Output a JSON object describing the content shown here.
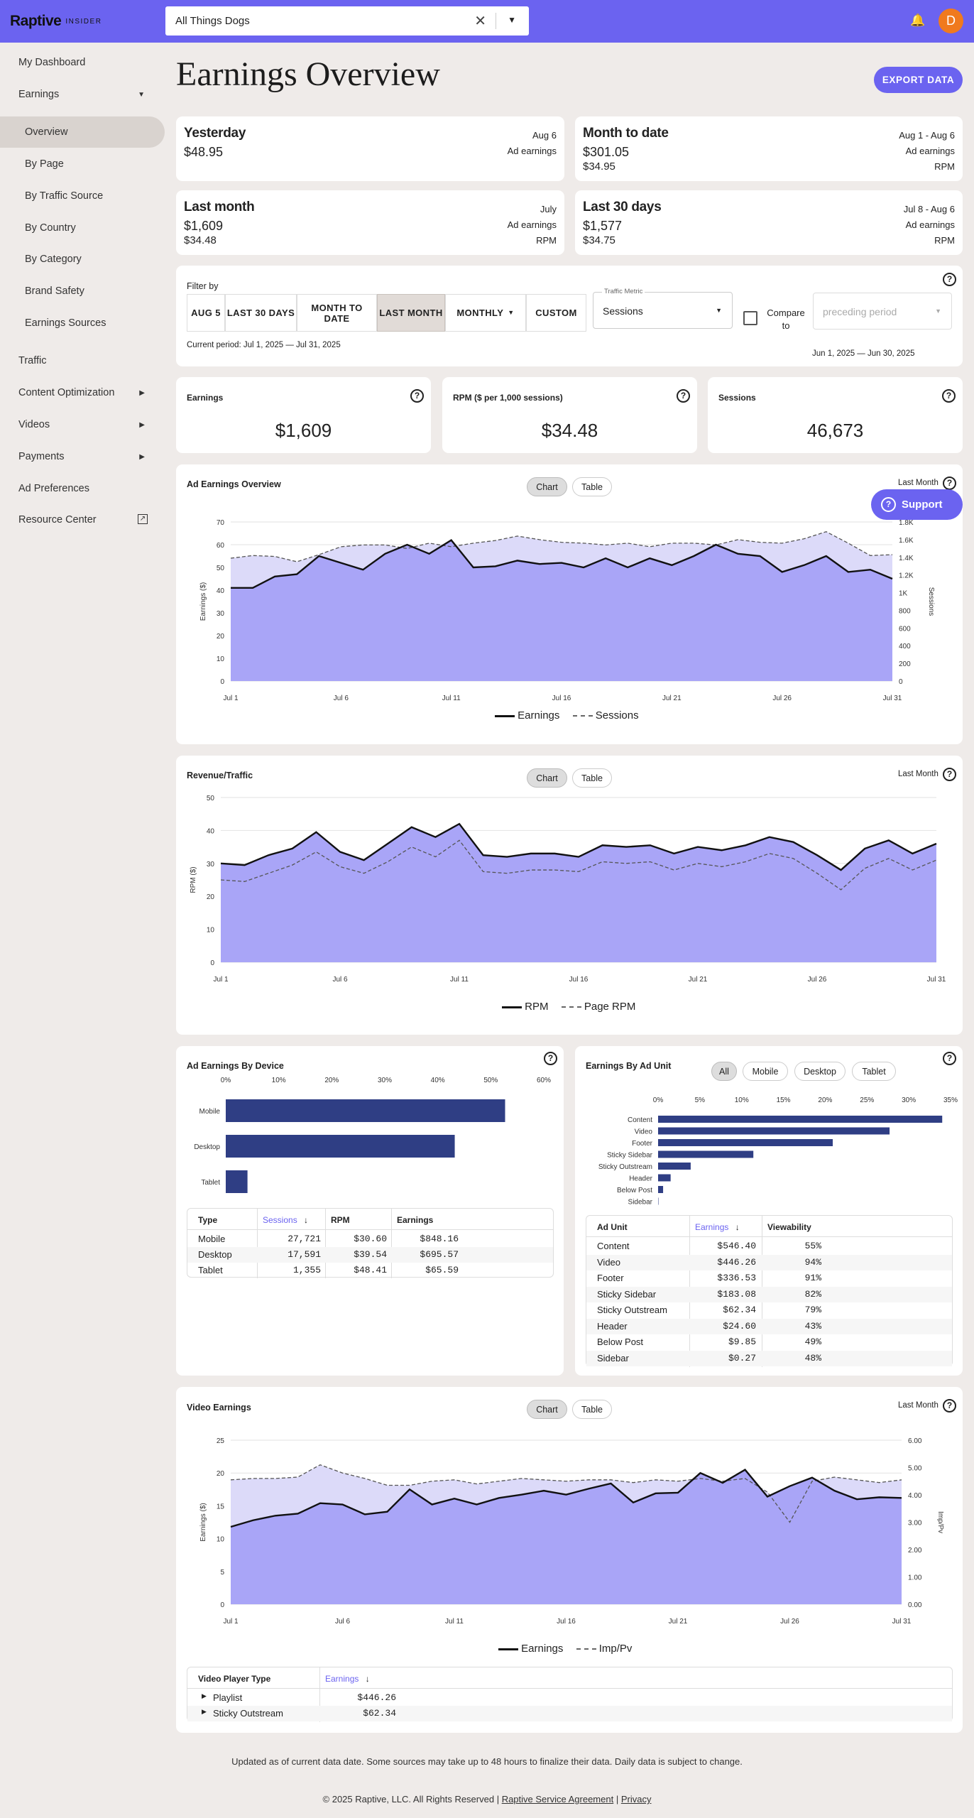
{
  "brand": {
    "logo": "Raptive",
    "sub": "INSIDER"
  },
  "site_select": {
    "value": "All Things Dogs"
  },
  "avatar_letter": "D",
  "sidebar": {
    "items": [
      {
        "label": "My Dashboard"
      },
      {
        "label": "Earnings"
      },
      {
        "label": "Overview"
      },
      {
        "label": "By Page"
      },
      {
        "label": "By Traffic Source"
      },
      {
        "label": "By Country"
      },
      {
        "label": "By Category"
      },
      {
        "label": "Brand Safety"
      },
      {
        "label": "Earnings Sources"
      },
      {
        "label": "Traffic"
      },
      {
        "label": "Content Optimization"
      },
      {
        "label": "Videos"
      },
      {
        "label": "Payments"
      },
      {
        "label": "Ad Preferences"
      },
      {
        "label": "Resource Center"
      }
    ]
  },
  "page_title": "Earnings Overview",
  "export_label": "EXPORT DATA",
  "summary": [
    {
      "title": "Yesterday",
      "value": "$48.95",
      "date": "Aug 6",
      "metric": "Ad earnings"
    },
    {
      "title": "Month to date",
      "value": "$301.05",
      "value2": "$34.95",
      "date": "Aug 1 - Aug 6",
      "metric": "Ad earnings",
      "metric2": "RPM"
    },
    {
      "title": "Last month",
      "value": "$1,609",
      "value2": "$34.48",
      "date": "July",
      "metric": "Ad earnings",
      "metric2": "RPM"
    },
    {
      "title": "Last 30 days",
      "value": "$1,577",
      "value2": "$34.75",
      "date": "Jul 8 - Aug 6",
      "metric": "Ad earnings",
      "metric2": "RPM"
    }
  ],
  "filter": {
    "label": "Filter by",
    "buttons": [
      "AUG 5",
      "LAST 30 DAYS",
      "MONTH TO DATE",
      "LAST MONTH",
      "MONTHLY",
      "CUSTOM"
    ],
    "traffic_metric_label": "Traffic Metric",
    "traffic_metric_value": "Sessions",
    "compare_label": "Compare to",
    "compare_placeholder": "preceding period",
    "current_period": "Current period: Jul 1, 2025 — Jul 31, 2025",
    "compare_period": "Jun 1, 2025 — Jun 30, 2025"
  },
  "kpis": [
    {
      "label": "Earnings",
      "value": "$1,609"
    },
    {
      "label": "RPM ($ per 1,000 sessions)",
      "value": "$34.48"
    },
    {
      "label": "Sessions",
      "value": "46,673"
    }
  ],
  "tabs": {
    "chart": "Chart",
    "table": "Table"
  },
  "range_label": "Last Month",
  "support_label": "Support",
  "ad_overview": {
    "title": "Ad Earnings Overview"
  },
  "revenue_traffic": {
    "title": "Revenue/Traffic"
  },
  "device": {
    "title": "Ad Earnings By Device",
    "headers": [
      "Type",
      "Sessions",
      "RPM",
      "Earnings"
    ],
    "rows": [
      [
        "Mobile",
        "27,721",
        "$30.60",
        "$848.16"
      ],
      [
        "Desktop",
        "17,591",
        "$39.54",
        "$695.57"
      ],
      [
        "Tablet",
        "1,355",
        "$48.41",
        "$65.59"
      ]
    ]
  },
  "adunit": {
    "title": "Earnings By Ad Unit",
    "filters": [
      "All",
      "Mobile",
      "Desktop",
      "Tablet"
    ],
    "headers": [
      "Ad Unit",
      "Earnings",
      "Viewability"
    ],
    "rows": [
      [
        "Content",
        "$546.40",
        "55%"
      ],
      [
        "Video",
        "$446.26",
        "94%"
      ],
      [
        "Footer",
        "$336.53",
        "91%"
      ],
      [
        "Sticky Sidebar",
        "$183.08",
        "82%"
      ],
      [
        "Sticky Outstream",
        "$62.34",
        "79%"
      ],
      [
        "Header",
        "$24.60",
        "43%"
      ],
      [
        "Below Post",
        "$9.85",
        "49%"
      ],
      [
        "Sidebar",
        "$0.27",
        "48%"
      ]
    ]
  },
  "video": {
    "title": "Video Earnings",
    "headers": [
      "Video Player Type",
      "Earnings"
    ],
    "rows": [
      [
        "Playlist",
        "$446.26"
      ],
      [
        "Sticky Outstream",
        "$62.34"
      ]
    ]
  },
  "footer": {
    "note": "Updated as of current data date. Some sources may take up to 48 hours to finalize their data. Daily data is subject to change.",
    "copy": "© 2025 ",
    "link1": "Raptive",
    "mid": ", LLC. All Rights Reserved | ",
    "link2": "Raptive Service Agreement",
    "sep": " | ",
    "link3": "Privacy"
  },
  "chart_data": [
    {
      "type": "area",
      "title": "Ad Earnings Overview",
      "x": [
        "Jul 1",
        "Jul 2",
        "Jul 3",
        "Jul 4",
        "Jul 5",
        "Jul 6",
        "Jul 7",
        "Jul 8",
        "Jul 9",
        "Jul 10",
        "Jul 11",
        "Jul 12",
        "Jul 13",
        "Jul 14",
        "Jul 15",
        "Jul 16",
        "Jul 17",
        "Jul 18",
        "Jul 19",
        "Jul 20",
        "Jul 21",
        "Jul 22",
        "Jul 23",
        "Jul 24",
        "Jul 25",
        "Jul 26",
        "Jul 27",
        "Jul 28",
        "Jul 29",
        "Jul 30",
        "Jul 31"
      ],
      "xticks": [
        "Jul 1",
        "Jul 6",
        "Jul 11",
        "Jul 16",
        "Jul 21",
        "Jul 26",
        "Jul 31"
      ],
      "ylabel": "Earnings ($)",
      "y2label": "Sessions",
      "ylim": [
        0,
        70
      ],
      "y2lim": [
        0,
        1800
      ],
      "yticks": [
        "0",
        "10",
        "20",
        "30",
        "40",
        "50",
        "60",
        "70"
      ],
      "y2ticks": [
        "0",
        "200",
        "400",
        "600",
        "800",
        "1K",
        "1.2K",
        "1.4K",
        "1.6K",
        "1.8K"
      ],
      "series": [
        {
          "name": "Earnings",
          "axis": "left",
          "values": [
            41,
            41,
            46,
            47,
            55,
            52,
            49,
            56,
            60,
            56,
            62,
            50,
            50.5,
            53,
            51.5,
            52,
            50,
            54,
            50,
            54,
            51,
            55,
            60,
            56,
            55,
            48,
            51,
            55,
            48,
            49,
            45
          ]
        },
        {
          "name": "Sessions",
          "axis": "right",
          "values": [
            1390,
            1420,
            1410,
            1350,
            1430,
            1520,
            1540,
            1540,
            1500,
            1560,
            1520,
            1560,
            1590,
            1640,
            1600,
            1570,
            1560,
            1540,
            1560,
            1520,
            1560,
            1560,
            1540,
            1600,
            1570,
            1560,
            1610,
            1690,
            1560,
            1420,
            1430
          ]
        }
      ]
    },
    {
      "type": "area",
      "title": "Revenue/Traffic",
      "x": [
        "Jul 1",
        "Jul 2",
        "Jul 3",
        "Jul 4",
        "Jul 5",
        "Jul 6",
        "Jul 7",
        "Jul 8",
        "Jul 9",
        "Jul 10",
        "Jul 11",
        "Jul 12",
        "Jul 13",
        "Jul 14",
        "Jul 15",
        "Jul 16",
        "Jul 17",
        "Jul 18",
        "Jul 19",
        "Jul 20",
        "Jul 21",
        "Jul 22",
        "Jul 23",
        "Jul 24",
        "Jul 25",
        "Jul 26",
        "Jul 27",
        "Jul 28",
        "Jul 29",
        "Jul 30",
        "Jul 31"
      ],
      "xticks": [
        "Jul 1",
        "Jul 6",
        "Jul 11",
        "Jul 16",
        "Jul 21",
        "Jul 26",
        "Jul 31"
      ],
      "ylabel": "RPM ($)",
      "ylim": [
        0,
        50
      ],
      "yticks": [
        "0",
        "10",
        "20",
        "30",
        "40",
        "50"
      ],
      "series": [
        {
          "name": "RPM",
          "values": [
            30,
            29.5,
            32.5,
            34.5,
            39.5,
            33.5,
            31,
            36,
            41,
            38,
            42,
            32.5,
            32,
            33,
            33,
            32,
            35.5,
            35,
            35.5,
            33,
            35,
            34,
            35.5,
            38,
            36.5,
            32.5,
            28,
            34.5,
            37,
            33,
            36
          ]
        },
        {
          "name": "Page RPM",
          "values": [
            25,
            24.5,
            27,
            29.5,
            33.5,
            29,
            27,
            30.5,
            35,
            32,
            37,
            27.5,
            27,
            28,
            28,
            27.5,
            30.5,
            30,
            30.5,
            28,
            30,
            29,
            30.5,
            33,
            31.5,
            27,
            22,
            28.5,
            31.5,
            28,
            31
          ]
        }
      ]
    },
    {
      "type": "bar",
      "title": "Ad Earnings By Device",
      "orientation": "horizontal",
      "categories": [
        "Mobile",
        "Desktop",
        "Tablet"
      ],
      "values": [
        52.7,
        43.2,
        4.1
      ],
      "xlim": [
        0,
        60
      ],
      "xticks": [
        "0%",
        "10%",
        "20%",
        "30%",
        "40%",
        "50%",
        "60%"
      ]
    },
    {
      "type": "bar",
      "title": "Earnings By Ad Unit",
      "orientation": "horizontal",
      "categories": [
        "Content",
        "Video",
        "Footer",
        "Sticky Sidebar",
        "Sticky Outstream",
        "Header",
        "Below Post",
        "Sidebar"
      ],
      "values": [
        34,
        27.7,
        20.9,
        11.4,
        3.9,
        1.5,
        0.6,
        0.02
      ],
      "xlim": [
        0,
        35
      ],
      "xticks": [
        "0%",
        "5%",
        "10%",
        "15%",
        "20%",
        "25%",
        "30%",
        "35%"
      ]
    },
    {
      "type": "area",
      "title": "Video Earnings",
      "x": [
        "Jul 1",
        "Jul 2",
        "Jul 3",
        "Jul 4",
        "Jul 5",
        "Jul 6",
        "Jul 7",
        "Jul 8",
        "Jul 9",
        "Jul 10",
        "Jul 11",
        "Jul 12",
        "Jul 13",
        "Jul 14",
        "Jul 15",
        "Jul 16",
        "Jul 17",
        "Jul 18",
        "Jul 19",
        "Jul 20",
        "Jul 21",
        "Jul 22",
        "Jul 23",
        "Jul 24",
        "Jul 25",
        "Jul 26",
        "Jul 27",
        "Jul 28",
        "Jul 29",
        "Jul 30",
        "Jul 31"
      ],
      "xticks": [
        "Jul 1",
        "Jul 6",
        "Jul 11",
        "Jul 16",
        "Jul 21",
        "Jul 26",
        "Jul 31"
      ],
      "ylabel": "Earnings ($)",
      "y2label": "Imp/Pv",
      "ylim": [
        0,
        25
      ],
      "y2lim": [
        0,
        6
      ],
      "yticks": [
        "0",
        "5",
        "10",
        "15",
        "20",
        "25"
      ],
      "y2ticks": [
        "0.00",
        "1.00",
        "2.00",
        "3.00",
        "4.00",
        "5.00",
        "6.00"
      ],
      "series": [
        {
          "name": "Earnings",
          "axis": "left",
          "values": [
            11.8,
            12.8,
            13.5,
            13.8,
            15.4,
            15.2,
            13.7,
            14.1,
            17.5,
            15.2,
            16.1,
            15.2,
            16.2,
            16.7,
            17.3,
            16.7,
            17.6,
            18.4,
            15.5,
            16.9,
            17,
            20,
            18.5,
            20.5,
            16.4,
            18,
            19.3,
            17.3,
            16,
            16.3,
            16.2
          ]
        },
        {
          "name": "Imp/Pv",
          "axis": "right",
          "values": [
            4.55,
            4.6,
            4.6,
            4.65,
            5.1,
            4.8,
            4.6,
            4.35,
            4.35,
            4.5,
            4.55,
            4.4,
            4.5,
            4.6,
            4.55,
            4.5,
            4.55,
            4.55,
            4.45,
            4.55,
            4.5,
            4.6,
            4.5,
            4.6,
            4.1,
            3.0,
            4.5,
            4.65,
            4.55,
            4.45,
            4.55
          ]
        }
      ]
    }
  ]
}
